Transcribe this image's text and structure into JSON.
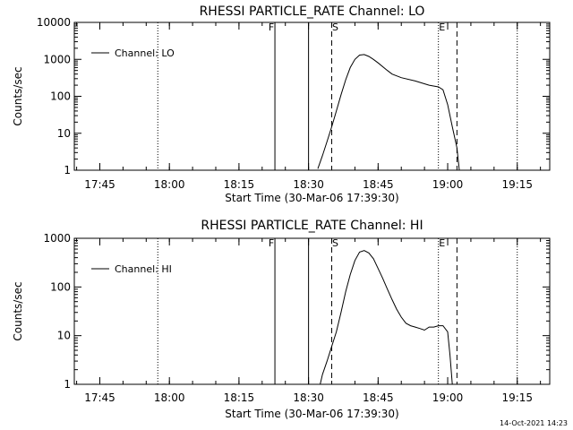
{
  "footer": {
    "timestamp": "14-Oct-2021 14:23"
  },
  "chart_data": [
    {
      "type": "line",
      "title": "RHESSI PARTICLE_RATE Channel: LO",
      "xlabel": "Start Time (30-Mar-06 17:39:30)",
      "ylabel": "Counts/sec",
      "yscale": "log",
      "xlim": [
        "17:39:30",
        "19:22:00"
      ],
      "ylim": [
        1,
        10000
      ],
      "x_ticks": [
        "17:45",
        "18:00",
        "18:15",
        "18:30",
        "18:45",
        "19:00",
        "19:15"
      ],
      "y_ticks": [
        "1",
        "10",
        "100",
        "1000",
        "10000"
      ],
      "legend": {
        "label": "Channel: LO",
        "position": "top-left"
      },
      "markers": [
        {
          "label": "",
          "time": "17:39:30",
          "style": "solid"
        },
        {
          "label": "",
          "time": "17:57:30",
          "style": "dotted"
        },
        {
          "label": "F",
          "time": "18:22:45",
          "style": "solid"
        },
        {
          "label": "",
          "time": "18:30:00",
          "style": "solid"
        },
        {
          "label": "S",
          "time": "18:35:00",
          "style": "dashed"
        },
        {
          "label": "E",
          "time": "18:58:00",
          "style": "dotted"
        },
        {
          "label": "",
          "time": "19:02:00",
          "style": "dashed"
        },
        {
          "label": "",
          "time": "19:15:00",
          "style": "dotted"
        }
      ],
      "series": [
        {
          "name": "Channel: LO",
          "x": [
            "18:32:00",
            "18:33:00",
            "18:34:00",
            "18:35:00",
            "18:36:00",
            "18:37:00",
            "18:38:00",
            "18:39:00",
            "18:40:00",
            "18:41:00",
            "18:42:00",
            "18:43:00",
            "18:44:00",
            "18:45:00",
            "18:47:00",
            "18:48:00",
            "18:50:00",
            "18:53:00",
            "18:56:00",
            "18:58:00",
            "18:59:00",
            "19:00:00",
            "19:01:00",
            "19:02:00",
            "19:02:30"
          ],
          "y": [
            1.1,
            2.5,
            6,
            15,
            40,
            110,
            280,
            600,
            1000,
            1300,
            1350,
            1200,
            1000,
            800,
            500,
            400,
            320,
            260,
            200,
            180,
            150,
            60,
            15,
            4,
            1
          ]
        }
      ]
    },
    {
      "type": "line",
      "title": "RHESSI PARTICLE_RATE Channel: HI",
      "xlabel": "Start Time (30-Mar-06 17:39:30)",
      "ylabel": "Counts/sec",
      "yscale": "log",
      "xlim": [
        "17:39:30",
        "19:22:00"
      ],
      "ylim": [
        1,
        1000
      ],
      "x_ticks": [
        "17:45",
        "18:00",
        "18:15",
        "18:30",
        "18:45",
        "19:00",
        "19:15"
      ],
      "y_ticks": [
        "1",
        "10",
        "100",
        "1000"
      ],
      "legend": {
        "label": "Channel: HI",
        "position": "top-left"
      },
      "markers": [
        {
          "label": "",
          "time": "17:39:30",
          "style": "solid"
        },
        {
          "label": "",
          "time": "17:57:30",
          "style": "dotted"
        },
        {
          "label": "F",
          "time": "18:22:45",
          "style": "solid"
        },
        {
          "label": "",
          "time": "18:30:00",
          "style": "solid"
        },
        {
          "label": "S",
          "time": "18:35:00",
          "style": "dashed"
        },
        {
          "label": "E",
          "time": "18:58:00",
          "style": "dotted"
        },
        {
          "label": "",
          "time": "19:02:00",
          "style": "dashed"
        },
        {
          "label": "",
          "time": "19:15:00",
          "style": "dotted"
        }
      ],
      "series": [
        {
          "name": "Channel: HI",
          "x": [
            "18:32:30",
            "18:33:00",
            "18:34:00",
            "18:35:00",
            "18:36:00",
            "18:37:00",
            "18:38:00",
            "18:39:00",
            "18:40:00",
            "18:41:00",
            "18:42:00",
            "18:43:00",
            "18:44:00",
            "18:45:00",
            "18:46:00",
            "18:47:00",
            "18:48:00",
            "18:49:00",
            "18:50:00",
            "18:51:00",
            "18:52:00",
            "18:53:00",
            "18:54:00",
            "18:55:00",
            "18:56:00",
            "18:57:00",
            "18:58:00",
            "18:59:00",
            "19:00:00",
            "19:00:30",
            "19:01:00"
          ],
          "y": [
            1,
            1.6,
            3,
            6,
            12,
            30,
            80,
            180,
            350,
            520,
            560,
            500,
            380,
            240,
            150,
            90,
            55,
            35,
            24,
            18,
            16,
            15,
            14,
            13,
            15,
            15,
            16,
            16,
            12,
            4,
            1
          ]
        }
      ]
    }
  ]
}
